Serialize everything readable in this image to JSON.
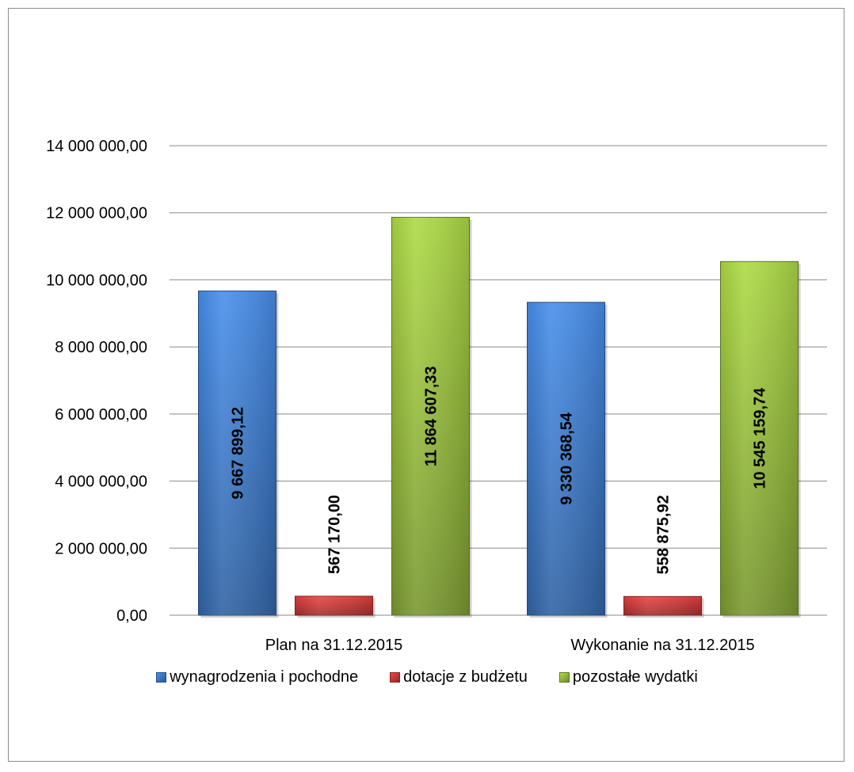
{
  "chart_data": {
    "type": "bar",
    "categories": [
      "Plan na 31.12.2015",
      "Wykonanie na 31.12.2015"
    ],
    "series": [
      {
        "name": "wynagrodzenia i pochodne",
        "color": "#3f7fd2",
        "values": [
          9667899.12,
          9330368.54
        ],
        "labels": [
          "9 667 899,12",
          "9 330 368,54"
        ]
      },
      {
        "name": "dotacje z budżetu",
        "color": "#d33b3b",
        "values": [
          567170.0,
          558875.92
        ],
        "labels": [
          "567 170,00",
          "558 875,92"
        ]
      },
      {
        "name": "pozostałe wydatki",
        "color": "#9bc33e",
        "values": [
          11864607.33,
          10545159.74
        ],
        "labels": [
          "11 864 607,33",
          "10 545 159,74"
        ]
      }
    ],
    "ylim": [
      0,
      14000000
    ],
    "yticks": [
      0,
      2000000,
      4000000,
      6000000,
      8000000,
      10000000,
      12000000,
      14000000
    ],
    "ytick_labels": [
      "0,00",
      "2 000 000,00",
      "4 000 000,00",
      "6 000 000,00",
      "8 000 000,00",
      "10 000 000,00",
      "12 000 000,00",
      "14 000 000,00"
    ],
    "grid": true,
    "legend_position": "bottom",
    "data_labels": "inside-rotated"
  }
}
